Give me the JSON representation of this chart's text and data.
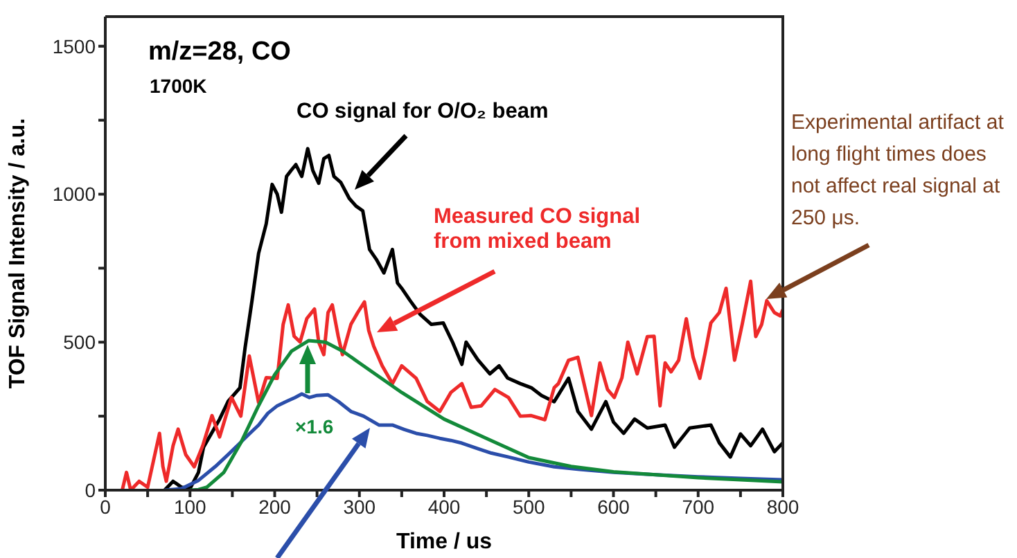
{
  "chart_data": {
    "type": "line",
    "xlabel": "Time / us",
    "ylabel": "TOF Signal Intensity / a.u.",
    "xlim": [
      0,
      800
    ],
    "ylim": [
      0,
      1600
    ],
    "xticks": [
      0,
      {
        "value": 50,
        "label": null
      },
      100,
      {
        "value": 150,
        "label": null
      },
      200,
      {
        "value": 250,
        "label": null
      },
      300,
      {
        "value": 350,
        "label": null
      },
      400,
      {
        "value": 450,
        "label": null
      },
      500,
      {
        "value": 550,
        "label": null
      },
      600,
      {
        "value": 650,
        "label": null
      },
      700,
      {
        "value": 750,
        "label": null
      },
      800
    ],
    "yticks": [
      0,
      {
        "value": 250,
        "label": null
      },
      500,
      {
        "value": 750,
        "label": null
      },
      1000,
      {
        "value": 1250,
        "label": null
      },
      1500
    ],
    "marker": "none",
    "line_style": "solid",
    "annotations": [
      "m/z=28, CO",
      "1700K",
      "CO signal for O/O₂ beam",
      "Measured CO signal from mixed beam",
      "×1.6",
      "Experimental artifact at long flight times does not affect real signal at 250 μs."
    ],
    "series": [
      {
        "color": "#000000",
        "x": [
          70,
          80,
          90,
          100,
          110,
          116,
          125,
          135,
          145,
          159,
          165,
          173,
          181,
          190,
          197,
          203,
          208,
          214,
          219,
          225,
          232,
          239,
          245,
          252,
          258,
          264,
          270,
          278,
          288,
          296,
          304,
          312,
          320,
          329,
          339,
          345,
          350,
          360,
          372,
          385,
          399,
          410,
          421,
          426,
          440,
          454,
          465,
          475,
          490,
          503,
          515,
          530,
          547,
          558,
          574,
          591,
          600,
          612,
          625,
          640,
          661,
          672,
          690,
          715,
          725,
          738,
          750,
          762,
          776,
          790,
          800
        ],
        "values": [
          0,
          30,
          10,
          5,
          60,
          145,
          190,
          240,
          300,
          346,
          480,
          636,
          800,
          900,
          1033,
          1000,
          939,
          1060,
          1079,
          1100,
          1060,
          1154,
          1080,
          1037,
          1120,
          1131,
          1060,
          1040,
          986,
          960,
          944,
          813,
          780,
          734,
          813,
          700,
          682,
          640,
          593,
          560,
          565,
          500,
          425,
          500,
          440,
          393,
          420,
          379,
          360,
          346,
          320,
          299,
          378,
          266,
          206,
          299,
          230,
          192,
          240,
          210,
          220,
          145,
          210,
          220,
          160,
          112,
          190,
          150,
          206,
          130,
          160
        ]
      },
      {
        "color": "#ee2a2a",
        "x": [
          20,
          25,
          30,
          40,
          50,
          64,
          68,
          72,
          80,
          86,
          95,
          105,
          115,
          126,
          135,
          149,
          160,
          170,
          181,
          190,
          203,
          210,
          216,
          223,
          230,
          238,
          247,
          252,
          258,
          263,
          268,
          275,
          280,
          290,
          298,
          306,
          311,
          317,
          327,
          339,
          350,
          367,
          380,
          395,
          408,
          421,
          432,
          444,
          460,
          476,
          490,
          503,
          519,
          530,
          535,
          547,
          558,
          574,
          584,
          593,
          601,
          610,
          617,
          628,
          640,
          648,
          655,
          661,
          668,
          677,
          686,
          694,
          702,
          708,
          715,
          725,
          733,
          743,
          752,
          762,
          768,
          775,
          781,
          790,
          797,
          800
        ],
        "values": [
          0,
          60,
          0,
          30,
          10,
          192,
          80,
          30,
          150,
          206,
          120,
          79,
          150,
          252,
          180,
          313,
          250,
          453,
          296,
          380,
          378,
          560,
          626,
          520,
          501,
          580,
          612,
          500,
          458,
          600,
          626,
          520,
          458,
          560,
          600,
          636,
          540,
          486,
          420,
          360,
          420,
          378,
          300,
          266,
          330,
          360,
          280,
          285,
          340,
          313,
          250,
          252,
          238,
          346,
          360,
          439,
          449,
          252,
          430,
          340,
          313,
          380,
          500,
          393,
          519,
          520,
          285,
          430,
          400,
          439,
          579,
          450,
          378,
          460,
          565,
          600,
          682,
          439,
          560,
          706,
          519,
          560,
          640,
          600,
          589,
          610
        ]
      },
      {
        "color": "#2b4eaa",
        "x": [
          70,
          90,
          110,
          130,
          145,
          159,
          170,
          181,
          192,
          203,
          214,
          224,
          232,
          241,
          250,
          263,
          275,
          290,
          305,
          323,
          339,
          353,
          367,
          380,
          395,
          408,
          421,
          440,
          456,
          476,
          500,
          530,
          560,
          600,
          650,
          700,
          750,
          800
        ],
        "values": [
          0,
          5,
          33,
          80,
          120,
          159,
          190,
          220,
          260,
          285,
          300,
          313,
          325,
          313,
          320,
          322,
          300,
          266,
          250,
          220,
          220,
          205,
          192,
          185,
          175,
          168,
          159,
          140,
          125,
          112,
          95,
          79,
          70,
          60,
          52,
          45,
          40,
          35
        ]
      },
      {
        "color": "#138a3a",
        "x": [
          100,
          110,
          120,
          140,
          160,
          180,
          200,
          220,
          240,
          260,
          280,
          300,
          350,
          400,
          450,
          500,
          550,
          600,
          650,
          700,
          750,
          800
        ],
        "values": [
          0,
          2,
          10,
          60,
          160,
          280,
          390,
          470,
          505,
          500,
          470,
          430,
          330,
          240,
          175,
          110,
          80,
          62,
          52,
          42,
          35,
          28
        ]
      }
    ]
  }
}
